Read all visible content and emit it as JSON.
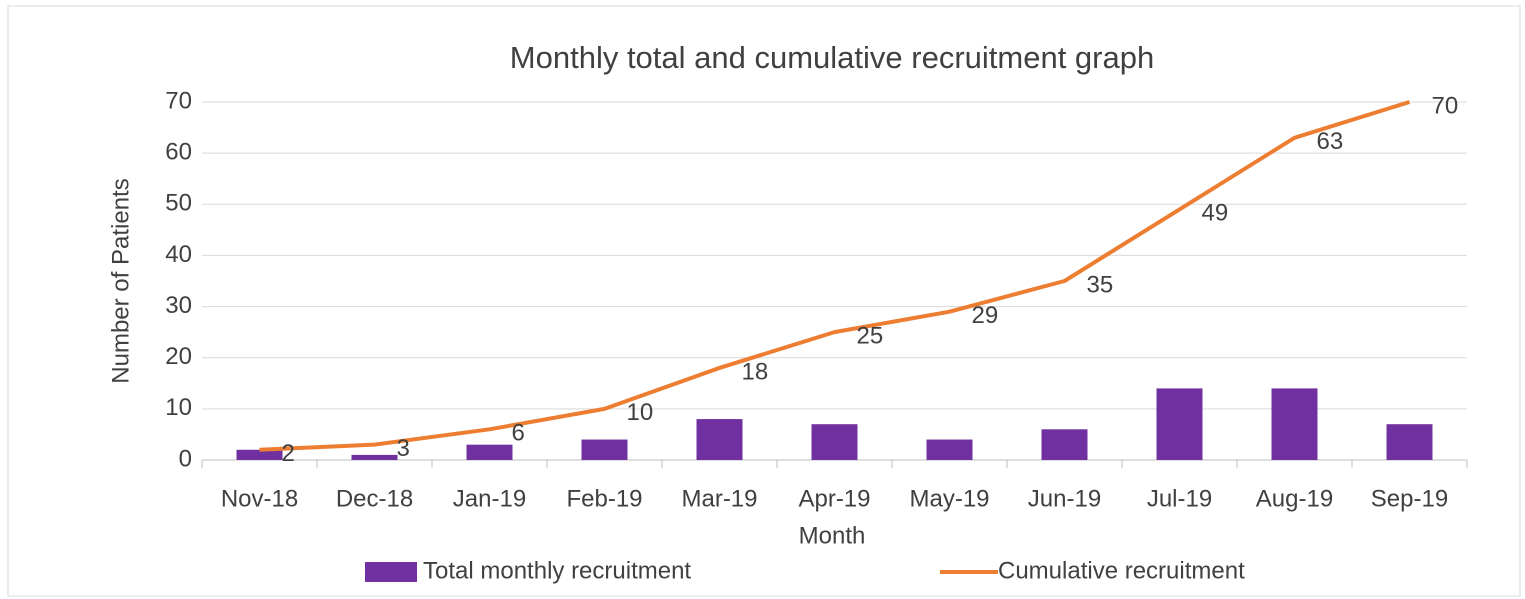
{
  "chart_data": {
    "type": "bar",
    "title": "Monthly total and cumulative recruitment graph",
    "x_label": "Month",
    "y_label": "Number of Patients",
    "categories": [
      "Nov-18",
      "Dec-18",
      "Jan-19",
      "Feb-19",
      "Mar-19",
      "Apr-19",
      "May-19",
      "Jun-19",
      "Jul-19",
      "Aug-19",
      "Sep-19"
    ],
    "series": [
      {
        "name": "Total monthly recruitment",
        "type": "bar",
        "color": "#7030a0",
        "values": [
          2,
          1,
          3,
          4,
          8,
          7,
          4,
          6,
          14,
          14,
          7
        ]
      },
      {
        "name": "Cumulative recruitment",
        "type": "line",
        "color": "#ed7d31",
        "values": [
          2,
          3,
          6,
          10,
          18,
          25,
          29,
          35,
          49,
          63,
          70
        ],
        "data_labels": true
      }
    ],
    "ylim": [
      0,
      70
    ],
    "yticks": [
      0,
      10,
      20,
      30,
      40,
      50,
      60,
      70
    ],
    "grid": true,
    "legend": "bottom"
  }
}
